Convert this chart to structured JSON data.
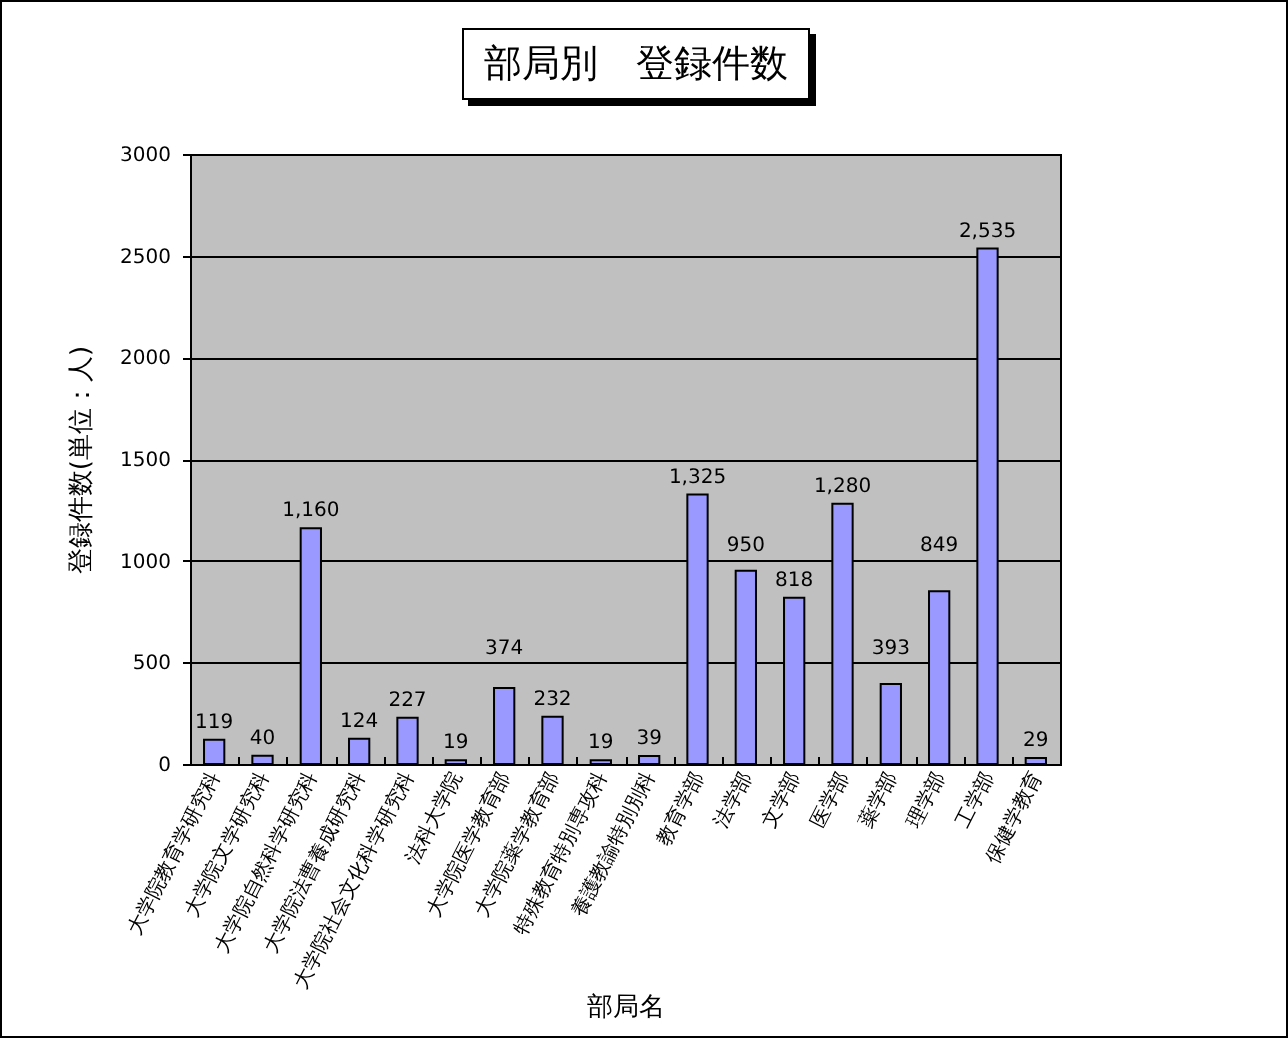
{
  "chart_data": {
    "type": "bar",
    "title": "部局別　登録件数",
    "xlabel": "部局名",
    "ylabel": "登録件数(単位：人)",
    "categories": [
      "大学院教育学研究科",
      "大学院文学研究科",
      "大学院自然科学研究科",
      "大学院法曹養成研究科",
      "大学院社会文化科学研究科",
      "法科大学院",
      "大学院医学教育部",
      "大学院薬学教育部",
      "特殊教育特別専攻科",
      "養護教諭特別別科",
      "教育学部",
      "法学部",
      "文学部",
      "医学部",
      "薬学部",
      "理学部",
      "工学部",
      "保健学教育"
    ],
    "values": [
      119,
      40,
      1160,
      124,
      227,
      19,
      374,
      232,
      19,
      39,
      1325,
      950,
      818,
      1280,
      393,
      849,
      2535,
      29
    ],
    "value_labels": [
      "119",
      "40",
      "1,160",
      "124",
      "227",
      "19",
      "374",
      "232",
      "19",
      "39",
      "1,325",
      "950",
      "818",
      "1,280",
      "393",
      "849",
      "2,535",
      "29"
    ],
    "color": "#9999ff",
    "ylim": [
      0,
      3000
    ],
    "yticks": [
      0,
      500,
      1000,
      1500,
      2000,
      2500,
      3000
    ],
    "grid": "y"
  }
}
